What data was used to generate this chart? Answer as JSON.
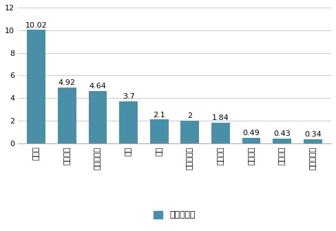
{
  "categories": [
    "比亚迪",
    "吉利汽车",
    "北汽新能源",
    "众泰",
    "奇瑞",
    "上汽乘用车",
    "江淮汽车",
    "长安汽车",
    "东风股份",
    "广汽乘用车"
  ],
  "values": [
    10.02,
    4.92,
    4.64,
    3.7,
    2.1,
    2.0,
    1.84,
    0.49,
    0.43,
    0.34
  ],
  "value_labels": [
    "10.02",
    "4.92",
    "4.64",
    "3.7",
    "2.1",
    "2",
    "1.84",
    "0.49",
    "0.43",
    "0.34"
  ],
  "bar_color": "#4a8fa8",
  "background_color": "#ffffff",
  "grid_color": "#c8c8c8",
  "ylim": [
    0,
    12
  ],
  "yticks": [
    0,
    2,
    4,
    6,
    8,
    10,
    12
  ],
  "legend_label": "销量：万辆",
  "legend_marker_color": "#4a8fa8",
  "value_fontsize": 8,
  "tick_fontsize": 8,
  "legend_fontsize": 9
}
